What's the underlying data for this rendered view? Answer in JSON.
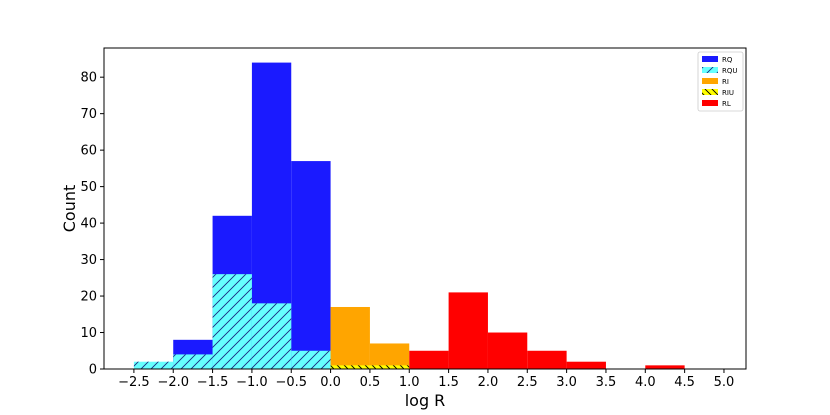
{
  "chart_data": {
    "type": "bar",
    "subtype": "histogram",
    "xlabel": "log R",
    "ylabel": "Count",
    "xlim": [
      -2.88,
      5.28
    ],
    "ylim": [
      0,
      88
    ],
    "bin_width": 0.5,
    "x_ticks": [
      -2.5,
      -2.0,
      -1.5,
      -1.0,
      -0.5,
      0.0,
      0.5,
      1.0,
      1.5,
      2.0,
      2.5,
      3.0,
      3.5,
      4.0,
      4.5,
      5.0
    ],
    "x_tick_labels": [
      "−2.5",
      "−2.0",
      "−1.5",
      "−1.0",
      "−0.5",
      "0.0",
      "0.5",
      "1.0",
      "1.5",
      "2.0",
      "2.5",
      "3.0",
      "3.5",
      "4.0",
      "4.5",
      "5.0"
    ],
    "y_ticks": [
      0,
      10,
      20,
      30,
      40,
      50,
      60,
      70,
      80
    ],
    "y_tick_labels": [
      "0",
      "10",
      "20",
      "30",
      "40",
      "50",
      "60",
      "70",
      "80"
    ],
    "legend_position": "top-right",
    "series": [
      {
        "name": "RQ",
        "color": "#1a1aff",
        "hatch": "none",
        "bins": [
          [
            -2.0,
            8
          ],
          [
            -1.5,
            42
          ],
          [
            -1.0,
            84
          ],
          [
            -0.5,
            57
          ]
        ]
      },
      {
        "name": "RQU",
        "color": "#66ffff",
        "hatch": "/",
        "bins": [
          [
            -2.5,
            2
          ],
          [
            -2.0,
            4
          ],
          [
            -1.5,
            26
          ],
          [
            -1.0,
            18
          ],
          [
            -0.5,
            5
          ]
        ]
      },
      {
        "name": "RI",
        "color": "#ffa500",
        "hatch": "none",
        "bins": [
          [
            0.0,
            17
          ],
          [
            0.5,
            7
          ]
        ]
      },
      {
        "name": "RIU",
        "color": "#ffff00",
        "hatch": "\\",
        "bins": [
          [
            0.0,
            1
          ],
          [
            0.5,
            1
          ]
        ]
      },
      {
        "name": "RL",
        "color": "#ff0000",
        "hatch": "none",
        "bins": [
          [
            1.0,
            5
          ],
          [
            1.5,
            21
          ],
          [
            2.0,
            10
          ],
          [
            2.5,
            5
          ],
          [
            3.0,
            2
          ],
          [
            4.0,
            1
          ]
        ]
      }
    ]
  }
}
